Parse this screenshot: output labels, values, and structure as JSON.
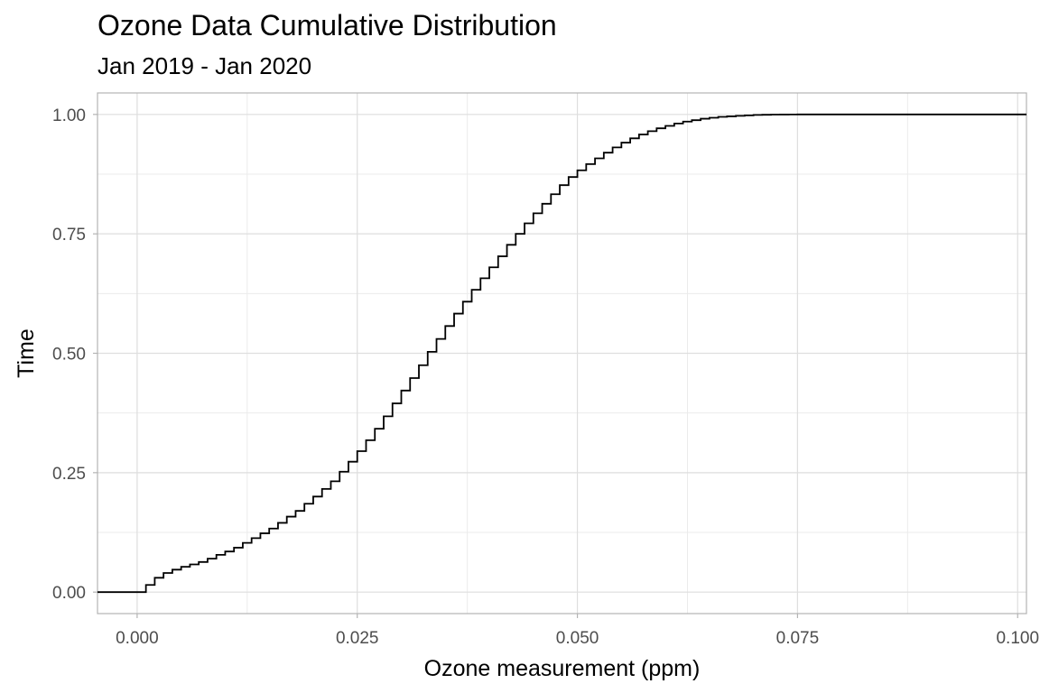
{
  "chart_data": {
    "type": "line",
    "title": "Ozone Data Cumulative Distribution",
    "subtitle": "Jan 2019 - Jan 2020",
    "xlabel": "Ozone measurement (ppm)",
    "ylabel": "Time",
    "xlim": [
      -0.0045,
      0.101
    ],
    "ylim": [
      -0.045,
      1.045
    ],
    "x_ticks": [
      0.0,
      0.025,
      0.05,
      0.075,
      0.1
    ],
    "x_tick_labels": [
      "0.000",
      "0.025",
      "0.050",
      "0.075",
      "0.100"
    ],
    "y_ticks": [
      0.0,
      0.25,
      0.5,
      0.75,
      1.0
    ],
    "y_tick_labels": [
      "0.00",
      "0.25",
      "0.50",
      "0.75",
      "1.00"
    ],
    "grid": true,
    "step": true,
    "series": [
      {
        "x": [
          -0.0045,
          0.001,
          0.002,
          0.003,
          0.004,
          0.005,
          0.006,
          0.007,
          0.008,
          0.009,
          0.01,
          0.011,
          0.012,
          0.013,
          0.014,
          0.015,
          0.016,
          0.017,
          0.018,
          0.019,
          0.02,
          0.021,
          0.022,
          0.023,
          0.024,
          0.025,
          0.026,
          0.027,
          0.028,
          0.029,
          0.03,
          0.031,
          0.032,
          0.033,
          0.034,
          0.035,
          0.036,
          0.037,
          0.038,
          0.039,
          0.04,
          0.041,
          0.042,
          0.043,
          0.044,
          0.045,
          0.046,
          0.047,
          0.048,
          0.049,
          0.05,
          0.051,
          0.052,
          0.053,
          0.054,
          0.055,
          0.056,
          0.057,
          0.058,
          0.059,
          0.06,
          0.061,
          0.062,
          0.063,
          0.064,
          0.065,
          0.066,
          0.067,
          0.068,
          0.069,
          0.07,
          0.071,
          0.072,
          0.073,
          0.074,
          0.075,
          0.101
        ],
        "y": [
          0.0,
          0.015,
          0.03,
          0.04,
          0.047,
          0.053,
          0.058,
          0.063,
          0.07,
          0.078,
          0.085,
          0.093,
          0.103,
          0.113,
          0.123,
          0.133,
          0.145,
          0.158,
          0.17,
          0.185,
          0.2,
          0.216,
          0.232,
          0.252,
          0.273,
          0.295,
          0.318,
          0.342,
          0.368,
          0.395,
          0.422,
          0.448,
          0.475,
          0.503,
          0.53,
          0.557,
          0.583,
          0.608,
          0.633,
          0.657,
          0.68,
          0.703,
          0.727,
          0.75,
          0.772,
          0.793,
          0.813,
          0.833,
          0.852,
          0.869,
          0.883,
          0.896,
          0.908,
          0.92,
          0.931,
          0.941,
          0.95,
          0.958,
          0.965,
          0.971,
          0.976,
          0.981,
          0.985,
          0.988,
          0.991,
          0.993,
          0.995,
          0.996,
          0.997,
          0.998,
          0.999,
          0.9993,
          0.9996,
          0.9998,
          0.9999,
          1.0,
          1.0
        ]
      }
    ]
  }
}
